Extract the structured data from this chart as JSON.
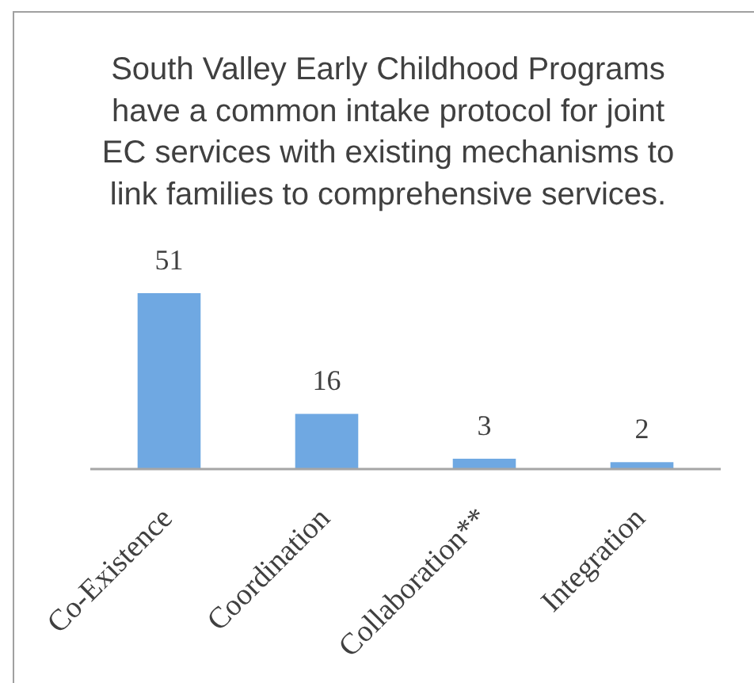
{
  "chart_data": {
    "type": "bar",
    "title": "South Valley Early Childhood Programs have a common intake protocol for joint EC services with existing mechanisms to link families to comprehensive services.",
    "categories": [
      "Co-Existence",
      "Coordination",
      "Collaboration**",
      "Integration"
    ],
    "values": [
      51,
      16,
      3,
      2
    ],
    "color": "#6fa8e2",
    "data_labels": true
  }
}
